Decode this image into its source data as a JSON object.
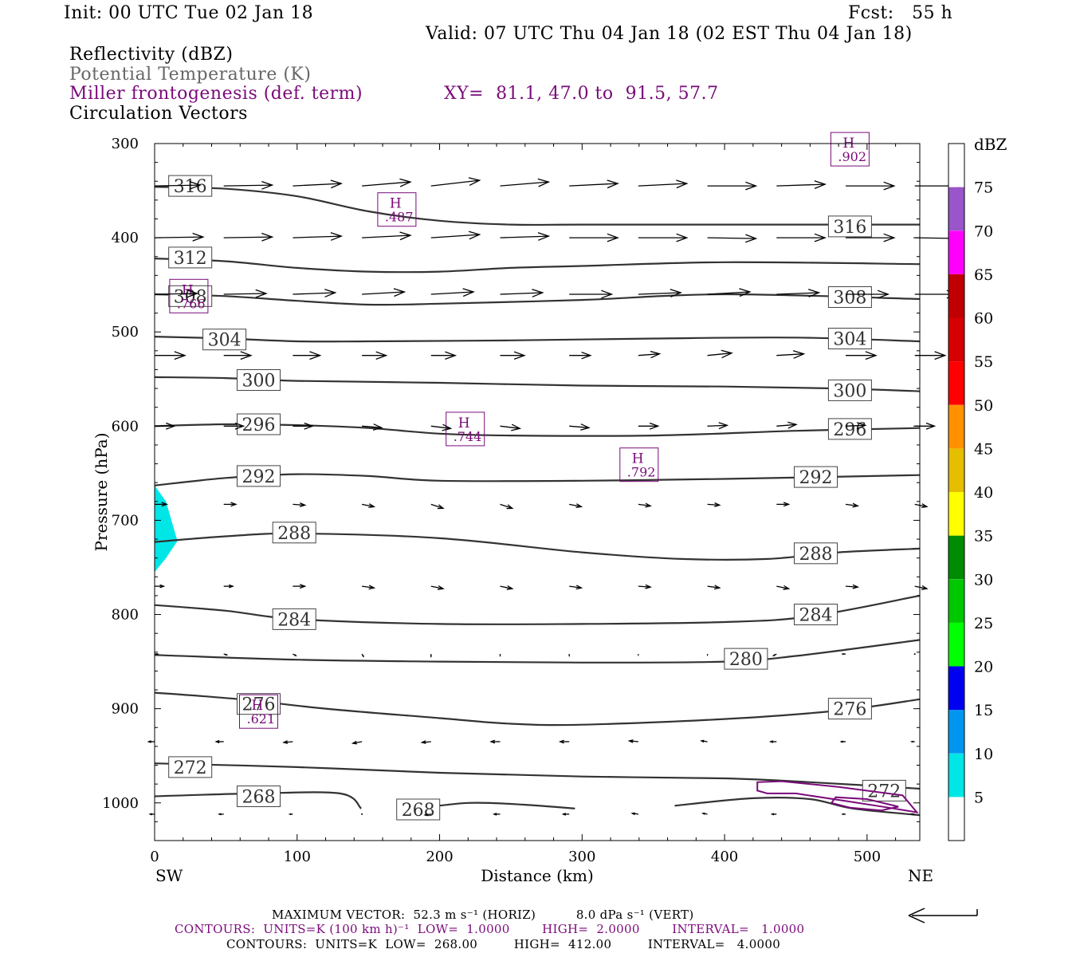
{
  "header": {
    "init": "Init: 00 UTC Tue 02 Jan 18",
    "fcst": "Fcst:   55 h",
    "valid": "Valid: 07 UTC Thu 04 Jan 18 (02 EST Thu 04 Jan 18)",
    "fields": [
      {
        "label": "Reflectivity (dBZ)",
        "color": "#000000"
      },
      {
        "label": "Potential Temperature (K)",
        "color": "#666666"
      },
      {
        "label": "Miller frontogenesis (def. term)",
        "color": "#7a0a7a"
      },
      {
        "label": "Circulation Vectors",
        "color": "#000000"
      }
    ],
    "xy": "XY=  81.1, 47.0 to  91.5, 57.7"
  },
  "footer": {
    "vector_line": "MAXIMUM VECTOR:  52.3 m s⁻¹ (HORIZ)          8.0 dPa s⁻¹ (VERT)",
    "contours1": "CONTOURS:  UNITS=K (100 km h)⁻¹  LOW=  1.0000        HIGH=  2.0000        INTERVAL=   1.0000",
    "contours2": "CONTOURS:  UNITS=K  LOW=  268.00         HIGH=  412.00         INTERVAL=   4.0000"
  },
  "chart_data": {
    "type": "cross-section",
    "xlabel": "Distance (km)",
    "ylabel": "Pressure (hPa)",
    "xlim": [
      0,
      537
    ],
    "ylim": [
      1040,
      300
    ],
    "x_ticks": [
      0,
      100,
      200,
      300,
      400,
      500
    ],
    "y_ticks": [
      300,
      400,
      500,
      600,
      700,
      800,
      900,
      1000
    ],
    "x_end_labels": {
      "left": "SW",
      "right": "NE"
    },
    "colorbar": {
      "title": "dBZ",
      "levels": [
        "5",
        "10",
        "15",
        "20",
        "25",
        "30",
        "35",
        "40",
        "45",
        "50",
        "55",
        "60",
        "65",
        "70",
        "75"
      ],
      "colors": [
        "#ffffff",
        "#00e6e6",
        "#0096f0",
        "#0000f0",
        "#00ff00",
        "#00c800",
        "#008c00",
        "#ffff00",
        "#e6be00",
        "#ff9100",
        "#ff0000",
        "#d60000",
        "#c00000",
        "#ff00ff",
        "#9955c9",
        "#ffffff"
      ]
    },
    "reflectivity_region": {
      "dbz_range": "5-10",
      "color": "#00e6e6",
      "points": [
        [
          0,
          663
        ],
        [
          8,
          680
        ],
        [
          16,
          722
        ],
        [
          8,
          740
        ],
        [
          0,
          755
        ]
      ]
    },
    "theta_contours": [
      {
        "value": 316,
        "points": [
          [
            0,
            346
          ],
          [
            50,
            348
          ],
          [
            100,
            356
          ],
          [
            150,
            372
          ],
          [
            200,
            382
          ],
          [
            250,
            386
          ],
          [
            300,
            386
          ],
          [
            400,
            386
          ],
          [
            537,
            386
          ]
        ],
        "labels": [
          [
            25,
            345
          ],
          [
            488,
            388
          ]
        ]
      },
      {
        "value": 312,
        "points": [
          [
            0,
            422
          ],
          [
            50,
            425
          ],
          [
            100,
            432
          ],
          [
            150,
            436
          ],
          [
            200,
            436
          ],
          [
            250,
            432
          ],
          [
            300,
            430
          ],
          [
            400,
            426
          ],
          [
            537,
            428
          ]
        ],
        "labels": [
          [
            25,
            421
          ]
        ]
      },
      {
        "value": 308,
        "points": [
          [
            0,
            460
          ],
          [
            50,
            462
          ],
          [
            100,
            467
          ],
          [
            150,
            471
          ],
          [
            200,
            470
          ],
          [
            300,
            466
          ],
          [
            400,
            460
          ],
          [
            537,
            465
          ]
        ],
        "labels": [
          [
            25,
            462
          ],
          [
            488,
            463
          ]
        ]
      },
      {
        "value": 304,
        "points": [
          [
            0,
            505
          ],
          [
            50,
            507
          ],
          [
            100,
            510
          ],
          [
            150,
            510
          ],
          [
            250,
            509
          ],
          [
            350,
            507
          ],
          [
            450,
            506
          ],
          [
            537,
            510
          ]
        ],
        "labels": [
          [
            49,
            508
          ],
          [
            488,
            507
          ]
        ]
      },
      {
        "value": 300,
        "points": [
          [
            0,
            548
          ],
          [
            50,
            549
          ],
          [
            100,
            552
          ],
          [
            200,
            554
          ],
          [
            300,
            557
          ],
          [
            400,
            558
          ],
          [
            480,
            560
          ],
          [
            537,
            563
          ]
        ],
        "labels": [
          [
            73,
            551
          ],
          [
            488,
            562
          ]
        ]
      },
      {
        "value": 296,
        "points": [
          [
            0,
            600
          ],
          [
            50,
            598
          ],
          [
            100,
            599
          ],
          [
            150,
            602
          ],
          [
            200,
            608
          ],
          [
            250,
            610
          ],
          [
            350,
            610
          ],
          [
            450,
            605
          ],
          [
            537,
            602
          ]
        ],
        "labels": [
          [
            73,
            598
          ],
          [
            488,
            603
          ]
        ]
      },
      {
        "value": 292,
        "points": [
          [
            0,
            663
          ],
          [
            50,
            655
          ],
          [
            100,
            651
          ],
          [
            150,
            653
          ],
          [
            200,
            658
          ],
          [
            300,
            658
          ],
          [
            400,
            656
          ],
          [
            537,
            652
          ]
        ],
        "labels": [
          [
            73,
            653
          ],
          [
            464,
            654
          ]
        ]
      },
      {
        "value": 288,
        "points": [
          [
            0,
            723
          ],
          [
            50,
            717
          ],
          [
            100,
            714
          ],
          [
            200,
            719
          ],
          [
            300,
            734
          ],
          [
            370,
            741
          ],
          [
            430,
            741
          ],
          [
            480,
            734
          ],
          [
            537,
            730
          ]
        ],
        "labels": [
          [
            98,
            713
          ],
          [
            464,
            735
          ]
        ]
      },
      {
        "value": 284,
        "points": [
          [
            0,
            790
          ],
          [
            50,
            796
          ],
          [
            100,
            805
          ],
          [
            200,
            810
          ],
          [
            300,
            810
          ],
          [
            400,
            808
          ],
          [
            460,
            802
          ],
          [
            537,
            780
          ]
        ],
        "labels": [
          [
            98,
            805
          ],
          [
            464,
            800
          ]
        ]
      },
      {
        "value": 280,
        "points": [
          [
            0,
            843
          ],
          [
            100,
            848
          ],
          [
            200,
            850
          ],
          [
            300,
            851
          ],
          [
            400,
            850
          ],
          [
            450,
            844
          ],
          [
            537,
            827
          ]
        ],
        "labels": [
          [
            415,
            847
          ]
        ]
      },
      {
        "value": 276,
        "points": [
          [
            0,
            883
          ],
          [
            60,
            890
          ],
          [
            120,
            900
          ],
          [
            200,
            910
          ],
          [
            250,
            916
          ],
          [
            300,
            917
          ],
          [
            400,
            911
          ],
          [
            480,
            902
          ],
          [
            537,
            890
          ]
        ],
        "labels": [
          [
            73,
            895
          ],
          [
            488,
            900
          ]
        ]
      },
      {
        "value": 272,
        "points": [
          [
            0,
            958
          ],
          [
            100,
            962
          ],
          [
            200,
            968
          ],
          [
            300,
            972
          ],
          [
            400,
            974
          ],
          [
            460,
            978
          ],
          [
            537,
            985
          ]
        ],
        "labels": [
          [
            25,
            962
          ],
          [
            512,
            987
          ]
        ]
      },
      {
        "value": 268,
        "points": [
          [
            0,
            993
          ],
          [
            70,
            990
          ],
          [
            130,
            990
          ],
          [
            145,
            1006
          ]
        ],
        "labels": [
          [
            73,
            993
          ]
        ]
      },
      {
        "value": 268,
        "points": [
          [
            180,
            1007
          ],
          [
            220,
            1000
          ],
          [
            260,
            1002
          ],
          [
            295,
            1006
          ]
        ],
        "labels": [
          [
            185,
            1007
          ]
        ]
      },
      {
        "value": 268,
        "points": [
          [
            365,
            1003
          ],
          [
            420,
            995
          ],
          [
            460,
            996
          ],
          [
            490,
            1006
          ],
          [
            537,
            1013
          ]
        ],
        "labels": []
      }
    ],
    "frontogenesis_contours": [
      {
        "value": 1,
        "points": [
          [
            423,
            987
          ],
          [
            423,
            978
          ],
          [
            440,
            977
          ],
          [
            480,
            983
          ],
          [
            525,
            992
          ],
          [
            535,
            1010
          ],
          [
            515,
            1005
          ],
          [
            485,
            998
          ],
          [
            450,
            990
          ],
          [
            430,
            990
          ]
        ]
      },
      {
        "value": 1,
        "points": [
          [
            475,
            1000
          ],
          [
            478,
            994
          ],
          [
            500,
            996
          ],
          [
            522,
            1004
          ],
          [
            510,
            1008
          ],
          [
            488,
            1005
          ]
        ]
      }
    ],
    "frontogenesis_maxima": [
      {
        "label": "H",
        "value": ".902",
        "x": 488,
        "p": 306
      },
      {
        "label": "H",
        "value": ".487",
        "x": 170,
        "p": 370
      },
      {
        "label": "H",
        "value": ".766",
        "x": 24,
        "p": 462
      },
      {
        "label": "H",
        "value": ".744",
        "x": 218,
        "p": 603
      },
      {
        "label": "H",
        "value": ".792",
        "x": 340,
        "p": 641
      },
      {
        "label": "H",
        "value": ".621",
        "x": 73,
        "p": 903
      }
    ],
    "circulation_vectors": {
      "x_columns": [
        0,
        48.5,
        97,
        145.5,
        194,
        242.5,
        291,
        339.5,
        388,
        436.5,
        485,
        533.5
      ],
      "rows": [
        {
          "p": 345,
          "u": [
            30,
            32,
            32,
            32,
            32,
            32,
            32,
            32,
            32,
            32,
            32,
            32
          ],
          "w": [
            -1,
            -1,
            -3,
            -5,
            -7,
            -5,
            -3,
            -3,
            0,
            -2,
            0,
            0
          ]
        },
        {
          "p": 400,
          "u": [
            32,
            32,
            32,
            32,
            32,
            32,
            32,
            32,
            32,
            32,
            32,
            32
          ],
          "w": [
            -1,
            -1,
            -2,
            -3,
            -4,
            -2,
            0,
            0,
            1,
            0,
            0,
            1
          ]
        },
        {
          "p": 460,
          "u": [
            28,
            28,
            28,
            28,
            28,
            28,
            28,
            28,
            28,
            28,
            28,
            28
          ],
          "w": [
            -1,
            -1,
            -2,
            -3,
            -3,
            -2,
            0,
            -2,
            -3,
            -2,
            0,
            0
          ]
        },
        {
          "p": 525,
          "u": [
            20,
            18,
            18,
            16,
            16,
            16,
            14,
            14,
            16,
            18,
            20,
            20
          ],
          "w": [
            0,
            0,
            0,
            0,
            0,
            0,
            0,
            -2,
            -3,
            -2,
            0,
            0
          ]
        },
        {
          "p": 600,
          "u": [
            13,
            13,
            13,
            13,
            13,
            13,
            13,
            13,
            13,
            13,
            13,
            13
          ],
          "w": [
            0,
            0,
            0,
            2,
            3,
            3,
            2,
            0,
            -1,
            -2,
            -1,
            0
          ]
        },
        {
          "p": 683,
          "u": [
            8,
            8,
            8,
            8,
            8,
            8,
            8,
            8,
            8,
            8,
            8,
            8
          ],
          "w": [
            0,
            0,
            1,
            3,
            5,
            5,
            3,
            2,
            1,
            0,
            2,
            3
          ]
        },
        {
          "p": 770,
          "u": [
            6,
            6,
            8,
            8,
            8,
            8,
            8,
            8,
            8,
            8,
            8,
            8
          ],
          "w": [
            0,
            0,
            0,
            2,
            3,
            3,
            2,
            1,
            2,
            3,
            1,
            3
          ]
        },
        {
          "p": 842,
          "u": [
            2,
            2,
            2,
            1,
            0,
            0,
            0,
            0,
            0,
            -2,
            -2,
            0
          ],
          "w": [
            0,
            1,
            2,
            3,
            3,
            2,
            2,
            1,
            1,
            2,
            0,
            0
          ]
        },
        {
          "p": 935,
          "u": [
            -4,
            -5,
            -6,
            -6,
            -6,
            -6,
            -6,
            -6,
            -4,
            -4,
            -3,
            -2
          ],
          "w": [
            0,
            0,
            1,
            2,
            1,
            0,
            0,
            -1,
            -1,
            0,
            0,
            0
          ]
        },
        {
          "p": 1012,
          "u": [
            -3,
            -3,
            -2,
            0,
            -4,
            -4,
            -4,
            -4,
            -3,
            -3,
            -2,
            -2
          ],
          "w": [
            0,
            0,
            0,
            0,
            1,
            0,
            0,
            -1,
            -1,
            0,
            0,
            0
          ]
        }
      ]
    },
    "reference_vector": {
      "u": 52.3,
      "w": 8.0
    }
  }
}
